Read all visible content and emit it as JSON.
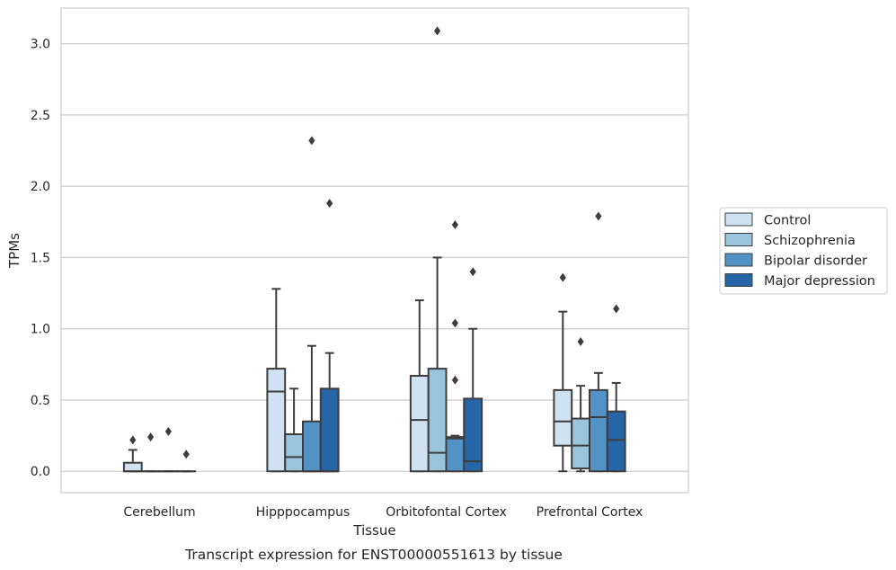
{
  "chart_data": {
    "type": "box",
    "title": "",
    "caption": "Transcript expression for ENST00000551613 by tissue",
    "xlabel": "Tissue",
    "ylabel": "TPMs",
    "ylim": [
      -0.15,
      3.25
    ],
    "yticks": [
      "0.0",
      "0.5",
      "1.0",
      "1.5",
      "2.0",
      "2.5",
      "3.0"
    ],
    "grid": "horizontal",
    "legend_position": "right",
    "categories": [
      "Cerebellum",
      "Hipppocampus",
      "Orbitofontal Cortex",
      "Prefrontal Cortex"
    ],
    "series": [
      {
        "name": "Control",
        "color": "#d0e1f2",
        "boxes": [
          {
            "q1": 0.0,
            "median": 0.0,
            "q3": 0.06,
            "whisker_low": 0.0,
            "whisker_high": 0.15,
            "outliers": [
              0.22
            ]
          },
          {
            "q1": 0.0,
            "median": 0.56,
            "q3": 0.72,
            "whisker_low": 0.0,
            "whisker_high": 1.28,
            "outliers": []
          },
          {
            "q1": 0.0,
            "median": 0.36,
            "q3": 0.67,
            "whisker_low": 0.0,
            "whisker_high": 1.2,
            "outliers": []
          },
          {
            "q1": 0.18,
            "median": 0.35,
            "q3": 0.57,
            "whisker_low": 0.0,
            "whisker_high": 1.12,
            "outliers": [
              1.36
            ]
          }
        ]
      },
      {
        "name": "Schizophrenia",
        "color": "#9ac3dc",
        "boxes": [
          {
            "q1": 0.0,
            "median": 0.0,
            "q3": 0.0,
            "whisker_low": 0.0,
            "whisker_high": 0.0,
            "outliers": [
              0.24
            ]
          },
          {
            "q1": 0.0,
            "median": 0.1,
            "q3": 0.26,
            "whisker_low": 0.0,
            "whisker_high": 0.58,
            "outliers": []
          },
          {
            "q1": 0.0,
            "median": 0.13,
            "q3": 0.72,
            "whisker_low": 0.0,
            "whisker_high": 1.5,
            "outliers": [
              3.09
            ]
          },
          {
            "q1": 0.02,
            "median": 0.18,
            "q3": 0.37,
            "whisker_low": 0.0,
            "whisker_high": 0.6,
            "outliers": [
              0.91
            ]
          }
        ]
      },
      {
        "name": "Bipolar disorder",
        "color": "#5292c7",
        "boxes": [
          {
            "q1": 0.0,
            "median": 0.0,
            "q3": 0.0,
            "whisker_low": 0.0,
            "whisker_high": 0.0,
            "outliers": [
              0.28
            ]
          },
          {
            "q1": 0.0,
            "median": 0.0,
            "q3": 0.35,
            "whisker_low": 0.0,
            "whisker_high": 0.88,
            "outliers": [
              2.32
            ]
          },
          {
            "q1": 0.0,
            "median": 0.23,
            "q3": 0.24,
            "whisker_low": 0.0,
            "whisker_high": 0.25,
            "outliers": [
              0.64,
              1.04,
              1.73
            ]
          },
          {
            "q1": 0.0,
            "median": 0.38,
            "q3": 0.57,
            "whisker_low": 0.0,
            "whisker_high": 0.69,
            "outliers": [
              1.79
            ]
          }
        ]
      },
      {
        "name": "Major depression",
        "color": "#2565a8",
        "boxes": [
          {
            "q1": 0.0,
            "median": 0.0,
            "q3": 0.0,
            "whisker_low": 0.0,
            "whisker_high": 0.0,
            "outliers": [
              0.12
            ]
          },
          {
            "q1": 0.0,
            "median": 0.0,
            "q3": 0.58,
            "whisker_low": 0.0,
            "whisker_high": 0.83,
            "outliers": [
              1.88
            ]
          },
          {
            "q1": 0.0,
            "median": 0.07,
            "q3": 0.51,
            "whisker_low": 0.0,
            "whisker_high": 1.0,
            "outliers": [
              1.4
            ]
          },
          {
            "q1": 0.0,
            "median": 0.22,
            "q3": 0.42,
            "whisker_low": 0.0,
            "whisker_high": 0.62,
            "outliers": [
              1.14
            ]
          }
        ]
      }
    ]
  }
}
